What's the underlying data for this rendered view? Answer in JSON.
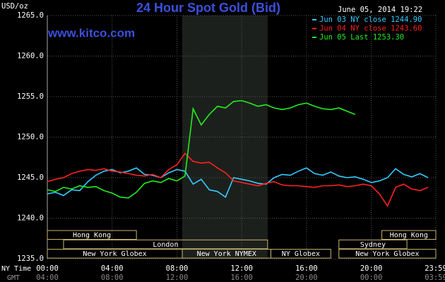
{
  "chart_data": {
    "type": "line",
    "title": "24 Hour Spot Gold (Bid)",
    "site": "www.kitco.com",
    "timestamp": "June 05, 2014 19:22",
    "y_label": "USD/oz",
    "x_label": "NY Time",
    "x2_label": "GMT",
    "background": "#000000",
    "grid": true,
    "shaded_range": [
      8.33,
      13.6
    ],
    "x": [
      0,
      0.5,
      1,
      1.5,
      2,
      2.5,
      3,
      3.5,
      4,
      4.5,
      5,
      5.5,
      6,
      6.5,
      7,
      7.5,
      8,
      8.5,
      9,
      9.5,
      10,
      10.5,
      11,
      11.5,
      12,
      12.5,
      13,
      13.5,
      14,
      14.5,
      15,
      15.5,
      16,
      16.5,
      17,
      17.5,
      18,
      18.5,
      19,
      19.5,
      20,
      20.5,
      21,
      21.5,
      22,
      22.5,
      23,
      23.5
    ],
    "series": [
      {
        "name": "Jun 03 NY close 1244.90",
        "color": "#33ccff",
        "values": [
          1243,
          1243.2,
          1242.8,
          1243.5,
          1243.4,
          1244.5,
          1245.3,
          1245.8,
          1246,
          1245.6,
          1245.8,
          1246.2,
          1245.4,
          1245.3,
          1245,
          1245.6,
          1246,
          1245.8,
          1244.2,
          1244.8,
          1243.5,
          1243.3,
          1242.6,
          1245,
          1244.8,
          1244.6,
          1244.3,
          1244.2,
          1245,
          1245.4,
          1245.3,
          1245.8,
          1246.2,
          1245.5,
          1245.3,
          1245.7,
          1245.2,
          1245,
          1245.1,
          1244.8,
          1244.4,
          1244.6,
          1245,
          1246.1,
          1245.4,
          1245.1,
          1245.5,
          1245
        ]
      },
      {
        "name": "Jun 04 NY close 1243.60",
        "color": "#ff2020",
        "values": [
          1244.5,
          1244.8,
          1245,
          1245.5,
          1245.8,
          1246,
          1245.9,
          1246.1,
          1245.8,
          1245.7,
          1245.5,
          1245.3,
          1245.2,
          1245.4,
          1245,
          1246,
          1246.6,
          1248,
          1247,
          1246.8,
          1246.9,
          1246.2,
          1245.6,
          1244.6,
          1244.4,
          1244.2,
          1244,
          1244.3,
          1244.5,
          1244.1,
          1244,
          1244,
          1243.9,
          1243.8,
          1244,
          1244,
          1244.1,
          1243.9,
          1244,
          1244.2,
          1244,
          1243,
          1241.5,
          1243.8,
          1244.2,
          1243.6,
          1243.4,
          1243.8
        ]
      },
      {
        "name": "Jun 05 Last 1253.30",
        "color": "#22ee22",
        "values": [
          1243.5,
          1243.3,
          1243.8,
          1243.6,
          1244,
          1243.8,
          1243.9,
          1243.4,
          1243.1,
          1242.6,
          1242.5,
          1243.2,
          1244.3,
          1244.6,
          1244.4,
          1244.9,
          1244.6,
          1245.2,
          1253.5,
          1251.5,
          1252.8,
          1253.8,
          1253.6,
          1254.4,
          1254.5,
          1254.2,
          1253.8,
          1254,
          1253.6,
          1253.4,
          1253.6,
          1254,
          1254.2,
          1253.8,
          1253.5,
          1253.4,
          1253.6,
          1253.2,
          1252.8,
          null,
          null,
          null,
          null,
          null,
          null,
          null,
          null,
          null
        ]
      }
    ],
    "xlim": [
      0,
      23.983
    ],
    "ylim": [
      1235,
      1265
    ],
    "yticks": [
      {
        "value": 1235,
        "label": "1235.0"
      },
      {
        "value": 1240,
        "label": "1240.0"
      },
      {
        "value": 1245,
        "label": "1245.0"
      },
      {
        "value": 1250,
        "label": "1250.0"
      },
      {
        "value": 1255,
        "label": "1255.0"
      },
      {
        "value": 1260,
        "label": "1260.0"
      },
      {
        "value": 1265,
        "label": "1265.0"
      }
    ],
    "xticks": [
      {
        "value": 0,
        "label": "00:00"
      },
      {
        "value": 4,
        "label": "04:00"
      },
      {
        "value": 8,
        "label": "08:00"
      },
      {
        "value": 12,
        "label": "12:00"
      },
      {
        "value": 16,
        "label": "16:00"
      },
      {
        "value": 20,
        "label": "20:00"
      },
      {
        "value": 23.983,
        "label": "23:59"
      }
    ],
    "x2ticks": [
      {
        "value": 0,
        "label": "04:00"
      },
      {
        "value": 4,
        "label": "08:00"
      },
      {
        "value": 8,
        "label": "12:00"
      },
      {
        "value": 12,
        "label": "16:00"
      },
      {
        "value": 16,
        "label": "20:00"
      },
      {
        "value": 20,
        "label": "00:00"
      },
      {
        "value": 23.983,
        "label": "03:59"
      }
    ],
    "session_rows": [
      [
        {
          "label": "Hong Kong",
          "start": 0,
          "end": 5.5
        },
        {
          "label": "Hong Kong",
          "start": 20.65,
          "end": 23.983
        }
      ],
      [
        {
          "label": "London",
          "start": 1,
          "end": 13.6
        },
        {
          "label": "Sydney",
          "start": 18,
          "end": 22.2
        }
      ],
      [
        {
          "label": "New York Globex",
          "start": 0,
          "end": 8.33
        },
        {
          "label": "New York NYMEX",
          "start": 8.33,
          "end": 13.8
        },
        {
          "label": "NY Globex",
          "start": 13.8,
          "end": 17.5
        },
        {
          "label": "New York Globex",
          "start": 18,
          "end": 23.983
        }
      ]
    ]
  }
}
